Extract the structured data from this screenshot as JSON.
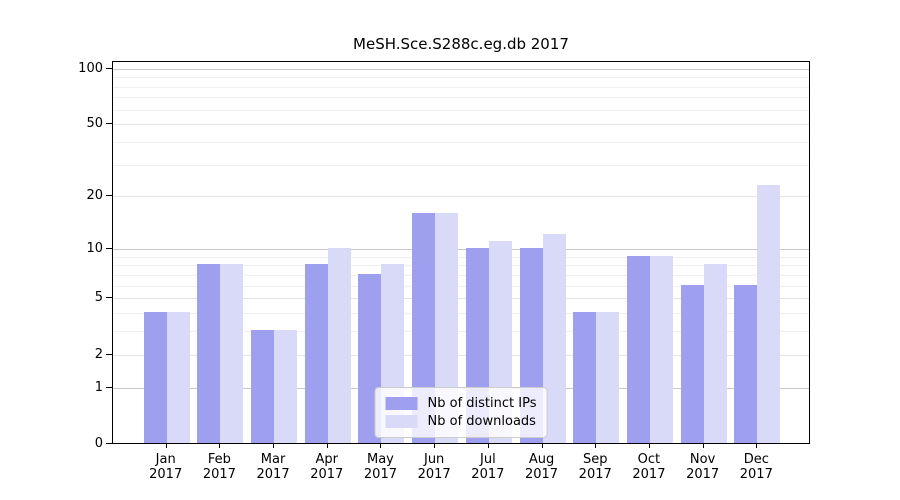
{
  "chart_data": {
    "type": "bar",
    "title": "MeSH.Sce.S288c.eg.db 2017",
    "categories": [
      "Jan 2017",
      "Feb 2017",
      "Mar 2017",
      "Apr 2017",
      "May 2017",
      "Jun 2017",
      "Jul 2017",
      "Aug 2017",
      "Sep 2017",
      "Oct 2017",
      "Nov 2017",
      "Dec 2017"
    ],
    "series": [
      {
        "name": "Nb of distinct IPs",
        "color": "#9f9ff0",
        "values": [
          4,
          8,
          3,
          8,
          7,
          16,
          10,
          10,
          4,
          9,
          6,
          6
        ]
      },
      {
        "name": "Nb of downloads",
        "color": "#d9d9f8",
        "values": [
          4,
          8,
          3,
          10,
          8,
          16,
          11,
          12,
          4,
          9,
          8,
          23
        ]
      }
    ],
    "yscale": "log1p",
    "ylim": [
      0,
      110
    ],
    "yticks": [
      0,
      1,
      2,
      5,
      10,
      20,
      50,
      100
    ],
    "grid_major": [
      1,
      10,
      100
    ],
    "grid_labeled": [
      2,
      5,
      20,
      50
    ],
    "grid_minor": [
      3,
      4,
      6,
      7,
      8,
      9,
      30,
      40,
      60,
      70,
      80,
      90
    ],
    "grid": "on",
    "legend_position": "lower center",
    "xlabel": "",
    "ylabel": ""
  },
  "colors": {
    "axis": "#000000",
    "grid_major": "#c9c9c9",
    "grid_labeled": "#e4e4e4",
    "grid_minor": "#f0f0f0",
    "legend_border": "#cccccc"
  }
}
